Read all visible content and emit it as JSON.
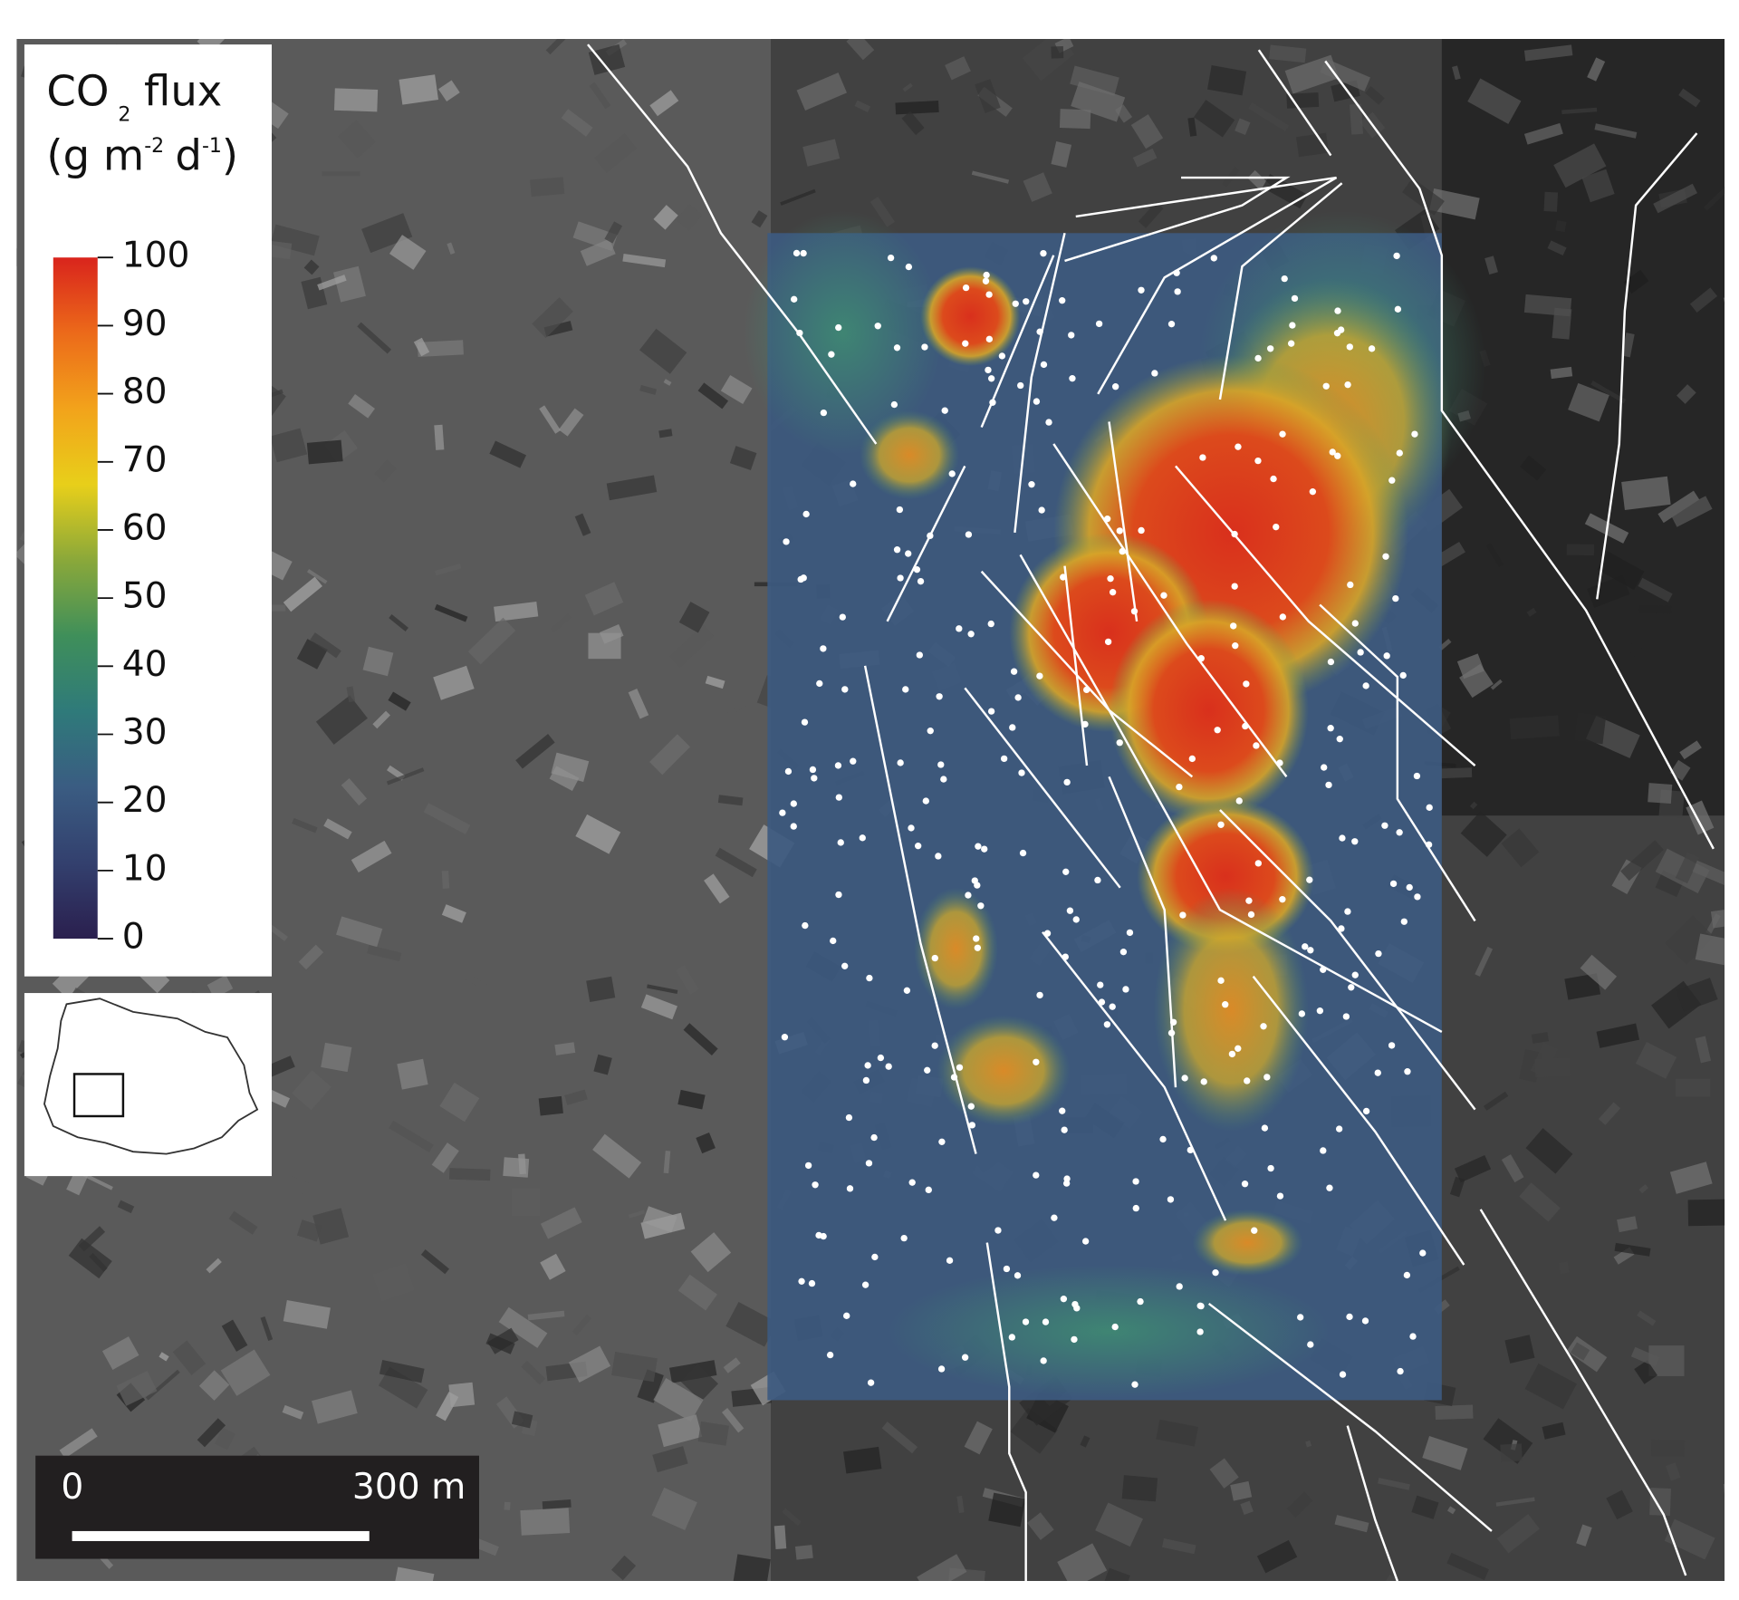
{
  "legend": {
    "title_line1": [
      "CO",
      "2",
      "flux"
    ],
    "title_line2": [
      "(g m",
      "-2",
      "d",
      "-1",
      ")"
    ]
  },
  "colorbar": {
    "lim": [
      0,
      100
    ],
    "ticks": [
      0,
      10,
      20,
      30,
      40,
      50,
      60,
      70,
      80,
      90,
      100
    ],
    "colors": [
      "#2a1f4e",
      "#33406e",
      "#3a5c82",
      "#2f7a7a",
      "#3f8f5a",
      "#8aa83a",
      "#e8cf1a",
      "#f2a31b",
      "#ec6a1a",
      "#d9241c"
    ]
  },
  "scale_bar": {
    "start": "0",
    "end": "300 m"
  }
}
